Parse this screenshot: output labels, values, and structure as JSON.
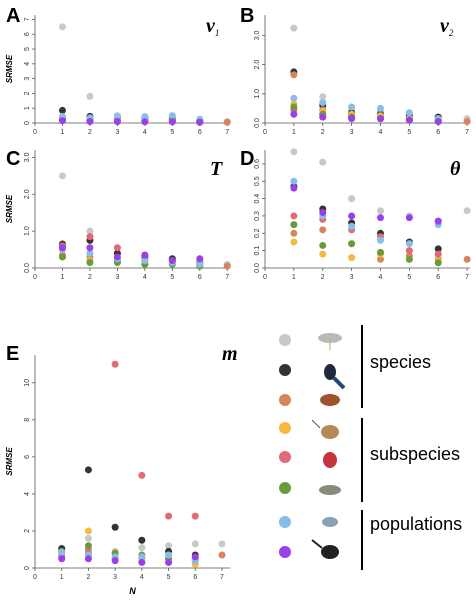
{
  "chart_data": [
    {
      "type": "scatter",
      "label": "A",
      "symbol": "ν",
      "symbol_sub": "1",
      "y_label": "SRMSE",
      "x": [
        1,
        2,
        3,
        4,
        5,
        6,
        7
      ],
      "xlim": [
        0,
        7.1
      ],
      "xticks": [
        0,
        1,
        2,
        3,
        4,
        5,
        6,
        7
      ],
      "ylim": [
        0,
        7.3
      ],
      "yticks": [
        0,
        1,
        2,
        3,
        4,
        5,
        6,
        7
      ],
      "series": [
        {
          "color": "#c8c8c8",
          "values": [
            6.5,
            1.8,
            0.5,
            0.45,
            0.4,
            0.2,
            0.1
          ]
        },
        {
          "color": "#333333",
          "values": [
            0.85,
            0.45,
            0.35,
            0.3,
            0.25,
            0.15,
            null
          ]
        },
        {
          "color": "#d4875a",
          "values": [
            0.4,
            0.3,
            0.2,
            0.2,
            0.15,
            0.1,
            0.05
          ]
        },
        {
          "color": "#f5b942",
          "values": [
            0.35,
            0.25,
            0.2,
            0.15,
            0.1,
            0.08,
            null
          ]
        },
        {
          "color": "#e06a7a",
          "values": [
            0.3,
            0.2,
            0.15,
            0.15,
            0.1,
            0.1,
            null
          ]
        },
        {
          "color": "#6b9a3c",
          "values": [
            0.25,
            0.15,
            0.1,
            0.1,
            0.1,
            0.05,
            null
          ]
        },
        {
          "color": "#88bde8",
          "values": [
            0.45,
            0.35,
            0.45,
            0.4,
            0.5,
            0.25,
            null
          ]
        },
        {
          "color": "#9b3fe8",
          "values": [
            0.15,
            0.1,
            0.1,
            0.08,
            0.08,
            0.05,
            null
          ]
        }
      ]
    },
    {
      "type": "scatter",
      "label": "B",
      "symbol": "ν",
      "symbol_sub": "2",
      "x": [
        1,
        2,
        3,
        4,
        5,
        6,
        7
      ],
      "xlim": [
        0,
        7.1
      ],
      "xticks": [
        0,
        1,
        2,
        3,
        4,
        5,
        6,
        7
      ],
      "ylim": [
        0,
        3.7
      ],
      "yticks": [
        {
          "value": 0,
          "label": "0.0"
        },
        {
          "value": 1,
          "label": "1.0"
        },
        {
          "value": 2,
          "label": "2.0"
        },
        {
          "value": 3,
          "label": "3.0"
        }
      ],
      "series": [
        {
          "color": "#c8c8c8",
          "values": [
            3.25,
            0.9,
            0.45,
            0.4,
            0.3,
            0.2,
            0.15
          ]
        },
        {
          "color": "#333333",
          "values": [
            1.75,
            0.6,
            0.35,
            0.3,
            0.25,
            0.2,
            null
          ]
        },
        {
          "color": "#d4875a",
          "values": [
            1.65,
            0.45,
            0.25,
            0.2,
            0.15,
            0.1,
            0.05
          ]
        },
        {
          "color": "#f5b942",
          "values": [
            0.65,
            0.4,
            0.3,
            0.25,
            0.15,
            0.1,
            null
          ]
        },
        {
          "color": "#e06a7a",
          "values": [
            0.45,
            0.3,
            0.2,
            0.15,
            0.1,
            0.1,
            null
          ]
        },
        {
          "color": "#6b9a3c",
          "values": [
            0.55,
            0.3,
            0.2,
            0.15,
            0.1,
            0.05,
            null
          ]
        },
        {
          "color": "#88bde8",
          "values": [
            0.85,
            0.7,
            0.55,
            0.5,
            0.35,
            0.15,
            null
          ]
        },
        {
          "color": "#9b3fe8",
          "values": [
            0.3,
            0.2,
            0.15,
            0.15,
            0.1,
            0.05,
            null
          ]
        }
      ]
    },
    {
      "type": "scatter",
      "label": "C",
      "symbol": "T",
      "y_label": "SRMSE",
      "x": [
        1,
        2,
        3,
        4,
        5,
        6,
        7
      ],
      "xlim": [
        0,
        7.1
      ],
      "xticks": [
        0,
        1,
        2,
        3,
        4,
        5,
        6,
        7
      ],
      "ylim": [
        0,
        3.2
      ],
      "yticks": [
        {
          "value": 0,
          "label": "0.0"
        },
        {
          "value": 1,
          "label": "1.0"
        },
        {
          "value": 2,
          "label": "2.0"
        },
        {
          "value": 3,
          "label": "3.0"
        }
      ],
      "series": [
        {
          "color": "#c8c8c8",
          "values": [
            2.5,
            1.0,
            0.4,
            0.35,
            0.25,
            0.2,
            0.1
          ]
        },
        {
          "color": "#333333",
          "values": [
            0.65,
            0.75,
            0.4,
            0.3,
            0.25,
            0.15,
            null
          ]
        },
        {
          "color": "#d4875a",
          "values": [
            0.35,
            0.3,
            0.2,
            0.2,
            0.15,
            0.1,
            0.05
          ]
        },
        {
          "color": "#f5b942",
          "values": [
            0.3,
            0.2,
            0.15,
            0.1,
            0.1,
            0.05,
            null
          ]
        },
        {
          "color": "#e06a7a",
          "values": [
            0.6,
            0.85,
            0.55,
            0.35,
            0.2,
            0.15,
            null
          ]
        },
        {
          "color": "#6b9a3c",
          "values": [
            0.3,
            0.15,
            0.15,
            0.1,
            0.1,
            0.05,
            null
          ]
        },
        {
          "color": "#88bde8",
          "values": [
            0.5,
            0.4,
            0.25,
            0.2,
            0.15,
            0.1,
            null
          ]
        },
        {
          "color": "#9b3fe8",
          "values": [
            0.55,
            0.55,
            0.3,
            0.35,
            0.2,
            0.25,
            null
          ]
        }
      ]
    },
    {
      "type": "scatter",
      "label": "D",
      "symbol": "θ",
      "x": [
        1,
        2,
        3,
        4,
        5,
        6,
        7
      ],
      "xlim": [
        0,
        7.1
      ],
      "xticks": [
        0,
        1,
        2,
        3,
        4,
        5,
        6,
        7
      ],
      "ylim": [
        0,
        0.68
      ],
      "yticks": [
        {
          "value": 0,
          "label": "0.0"
        },
        0.1,
        0.2,
        0.3,
        0.4,
        0.5,
        0.6
      ],
      "series": [
        {
          "color": "#c8c8c8",
          "values": [
            0.67,
            0.61,
            0.4,
            0.33,
            0.3,
            0.27,
            0.33
          ]
        },
        {
          "color": "#333333",
          "values": [
            0.47,
            0.34,
            0.26,
            0.2,
            0.15,
            0.11,
            null
          ]
        },
        {
          "color": "#d4875a",
          "values": [
            0.2,
            0.22,
            0.14,
            0.05,
            0.07,
            0.05,
            0.05
          ]
        },
        {
          "color": "#f5b942",
          "values": [
            0.15,
            0.08,
            0.06,
            0.08,
            0.05,
            0.04,
            null
          ]
        },
        {
          "color": "#e06a7a",
          "values": [
            0.3,
            0.28,
            0.22,
            0.18,
            0.1,
            0.08,
            null
          ]
        },
        {
          "color": "#6b9a3c",
          "values": [
            0.25,
            0.13,
            0.14,
            0.09,
            0.05,
            0.03,
            null
          ]
        },
        {
          "color": "#88bde8",
          "values": [
            0.5,
            0.3,
            0.24,
            0.16,
            0.14,
            0.25,
            null
          ]
        },
        {
          "color": "#9b3fe8",
          "values": [
            0.46,
            0.32,
            0.3,
            0.29,
            0.29,
            0.27,
            null
          ]
        }
      ]
    },
    {
      "type": "scatter",
      "label": "E",
      "symbol": "m",
      "y_label": "SRMSE",
      "x_label": "N",
      "x": [
        1,
        2,
        3,
        4,
        5,
        6,
        7
      ],
      "xlim": [
        0,
        7.3
      ],
      "xticks": [
        0,
        1,
        2,
        3,
        4,
        5,
        6,
        7
      ],
      "ylim": [
        0,
        11.5
      ],
      "yticks": [
        0,
        2,
        4,
        6,
        8,
        10
      ],
      "series": [
        {
          "color": "#c8c8c8",
          "values": [
            1.0,
            1.6,
            0.9,
            1.1,
            1.2,
            1.3,
            1.3
          ]
        },
        {
          "color": "#333333",
          "values": [
            1.05,
            5.3,
            2.2,
            1.5,
            0.9,
            0.7,
            null
          ]
        },
        {
          "color": "#d4875a",
          "values": [
            0.7,
            1.0,
            0.8,
            0.5,
            0.5,
            0.5,
            0.7
          ]
        },
        {
          "color": "#f5b942",
          "values": [
            0.8,
            2.0,
            0.5,
            0.4,
            0.3,
            0.2,
            null
          ]
        },
        {
          "color": "#e06a7a",
          "values": [
            0.6,
            0.8,
            11.0,
            5.0,
            2.8,
            2.8,
            null
          ]
        },
        {
          "color": "#6b9a3c",
          "values": [
            0.9,
            1.2,
            0.8,
            0.7,
            0.5,
            0.4,
            null
          ]
        },
        {
          "color": "#88bde8",
          "values": [
            0.85,
            0.7,
            0.6,
            0.6,
            0.7,
            0.4,
            null
          ]
        },
        {
          "color": "#9b3fe8",
          "values": [
            0.5,
            0.5,
            0.4,
            0.3,
            0.3,
            0.6,
            null
          ]
        }
      ]
    }
  ],
  "legend": {
    "colors": [
      "#c8c8c8",
      "#333333",
      "#d4875a",
      "#f5b942",
      "#e06a7a",
      "#6b9a3c",
      "#88bde8",
      "#9b3fe8"
    ],
    "groups": [
      "species",
      "subspecies",
      "populations"
    ]
  }
}
